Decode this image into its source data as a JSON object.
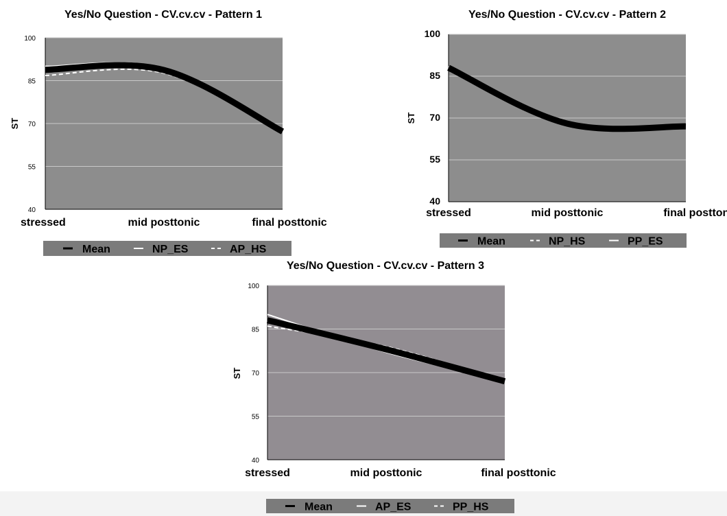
{
  "chart_data": [
    {
      "type": "line",
      "title": "Yes/No Question - CV.cv.cv - Pattern 1",
      "xlabel": "",
      "ylabel": "ST",
      "categories": [
        "stressed",
        "mid posttonic",
        "final posttonic"
      ],
      "ylim": [
        40,
        100
      ],
      "yticks": [
        40,
        55,
        70,
        85,
        100
      ],
      "plot_background": "#8d8d8d",
      "legend_background": "#7b7b7b",
      "legend_position": "bottom",
      "grid": true,
      "series": [
        {
          "name": "Mean",
          "values": [
            88.8,
            88.7,
            67.2
          ],
          "color": "#000000",
          "style": "solid-thick"
        },
        {
          "name": "NP_ES",
          "values": [
            90.0,
            89.4,
            67.4
          ],
          "color": "#ffffff",
          "style": "solid"
        },
        {
          "name": "AP_HS",
          "values": [
            86.8,
            87.6,
            67.0
          ],
          "color": "#ffffff",
          "style": "dashed"
        }
      ]
    },
    {
      "type": "line",
      "title": "Yes/No Question - CV.cv.cv - Pattern 2",
      "xlabel": "",
      "ylabel": "ST",
      "categories": [
        "stressed",
        "mid posttonic",
        "final posttonic"
      ],
      "ylim": [
        40,
        100
      ],
      "yticks": [
        40,
        55,
        70,
        85,
        100
      ],
      "plot_background": "#8d8d8d",
      "legend_background": "#7b7b7b",
      "legend_position": "bottom",
      "grid": true,
      "series": [
        {
          "name": "Mean",
          "values": [
            88.0,
            68.0,
            67.0
          ],
          "color": "#000000",
          "style": "solid-thick"
        },
        {
          "name": "NP_HS",
          "values": [
            88.4,
            68.2,
            67.0
          ],
          "color": "#ffffff",
          "style": "dashed"
        },
        {
          "name": "PP_ES",
          "values": [
            87.6,
            67.8,
            67.0
          ],
          "color": "#ffffff",
          "style": "solid"
        }
      ]
    },
    {
      "type": "line",
      "title": "Yes/No Question - CV.cv.cv - Pattern 3",
      "xlabel": "",
      "ylabel": "ST",
      "categories": [
        "stressed",
        "mid posttonic",
        "final posttonic"
      ],
      "ylim": [
        40,
        100
      ],
      "yticks": [
        40,
        55,
        70,
        85,
        100
      ],
      "plot_background": "#928d92",
      "legend_background": "#7b7b7b",
      "legend_position": "bottom",
      "grid": true,
      "series": [
        {
          "name": "Mean",
          "values": [
            88.0,
            78.0,
            67.0
          ],
          "color": "#000000",
          "style": "solid-thick"
        },
        {
          "name": "AP_ES",
          "values": [
            90.0,
            77.0,
            67.2
          ],
          "color": "#ffffff",
          "style": "solid"
        },
        {
          "name": "PP_HS",
          "values": [
            86.0,
            79.0,
            67.0
          ],
          "color": "#ffffff",
          "style": "dashed"
        }
      ]
    }
  ]
}
